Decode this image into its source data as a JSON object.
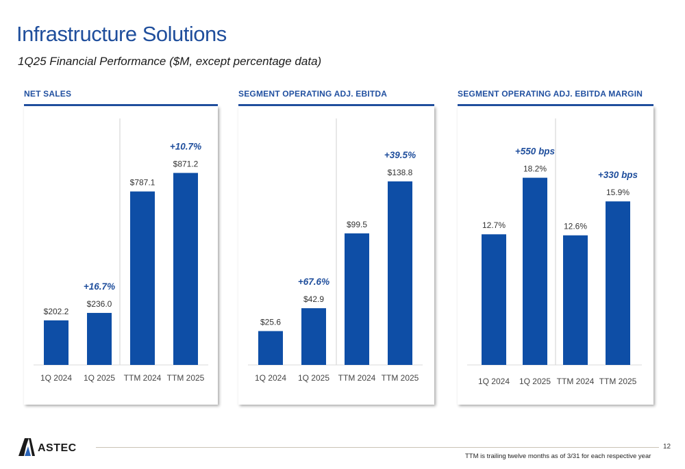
{
  "header": {
    "title": "Infrastructure Solutions",
    "subtitle": "1Q25 Financial Performance ($M, except percentage data)"
  },
  "colors": {
    "bar": "#0e4ea6",
    "heading": "#2150a0",
    "annotation": "#1f4e9c"
  },
  "chart_data": [
    {
      "type": "bar",
      "title": "NET SALES",
      "categories": [
        "1Q 2024",
        "1Q 2025",
        "TTM 2024",
        "TTM 2025"
      ],
      "values": [
        202.2,
        236.0,
        787.1,
        871.2
      ],
      "data_labels": [
        "$202.2",
        "$236.0",
        "$787.1",
        "$871.2"
      ],
      "annotations": [
        {
          "text": "+16.7%",
          "category": "1Q 2025"
        },
        {
          "text": "+10.7%",
          "category": "TTM 2025"
        }
      ],
      "ylim": [
        0,
        1050
      ]
    },
    {
      "type": "bar",
      "title": "SEGMENT OPERATING ADJ. EBITDA",
      "categories": [
        "1Q 2024",
        "1Q 2025",
        "TTM 2024",
        "TTM 2025"
      ],
      "values": [
        25.6,
        42.9,
        99.5,
        138.8
      ],
      "data_labels": [
        "$25.6",
        "$42.9",
        "$99.5",
        "$138.8"
      ],
      "annotations": [
        {
          "text": "+67.6%",
          "category": "1Q 2025"
        },
        {
          "text": "+39.5%",
          "category": "TTM 2025"
        }
      ],
      "ylim": [
        0,
        175
      ]
    },
    {
      "type": "bar",
      "title": "SEGMENT OPERATING ADJ. EBITDA MARGIN",
      "categories": [
        "1Q 2024",
        "1Q 2025",
        "TTM 2024",
        "TTM 2025"
      ],
      "values": [
        12.7,
        18.2,
        12.6,
        15.9
      ],
      "data_labels": [
        "12.7%",
        "18.2%",
        "12.6%",
        "15.9%"
      ],
      "annotations": [
        {
          "text": "+550 bps",
          "category": "1Q 2025"
        },
        {
          "text": "+330 bps",
          "category": "TTM 2025"
        }
      ],
      "ylim": [
        0,
        22.5
      ]
    }
  ],
  "footer": {
    "logo_text": "ASTEC",
    "page_number": "12",
    "note": "TTM is trailing twelve months as of 3/31 for each respective year"
  }
}
